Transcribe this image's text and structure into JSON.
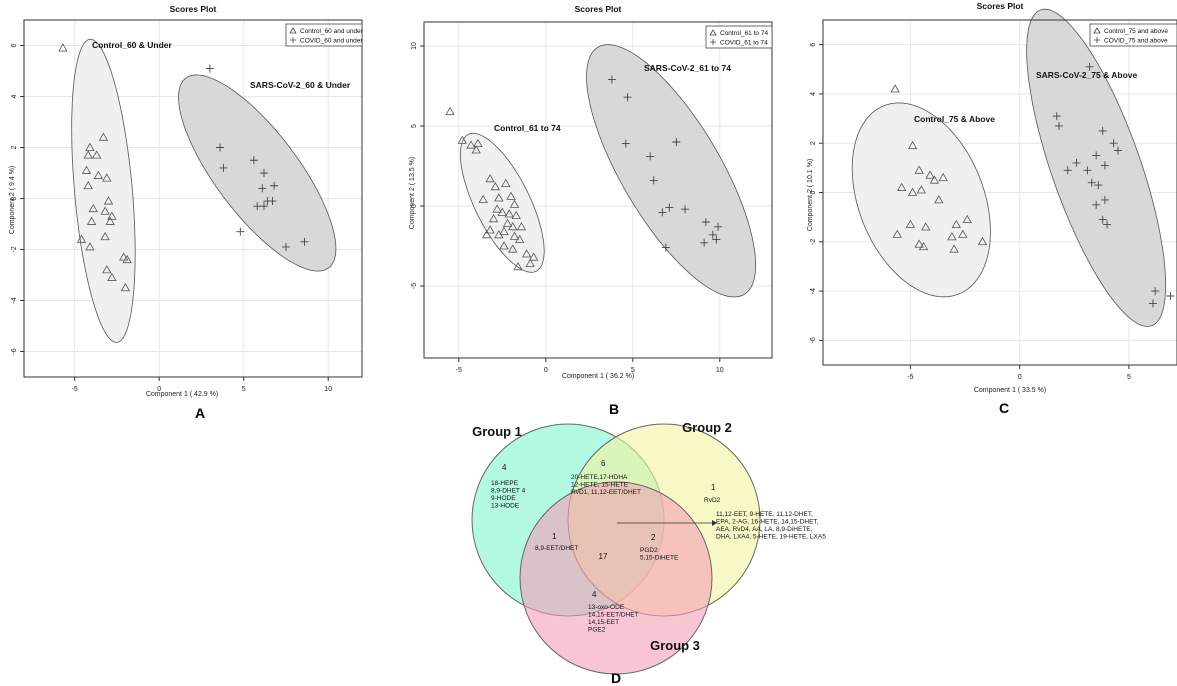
{
  "panel_letters": [
    "A",
    "B",
    "C",
    "D"
  ],
  "chart_data": [
    {
      "type": "scatter",
      "letter": "A",
      "title": "Scores Plot",
      "xlabel": "Component 1 ( 42.9 %)",
      "ylabel": "Component 2 ( 9.4 %)",
      "xlim": [
        -8,
        12
      ],
      "ylim": [
        -7,
        7
      ],
      "xticks": [
        -5,
        0,
        5,
        10
      ],
      "yticks": [
        -6,
        -4,
        -2,
        0,
        2,
        4,
        6
      ],
      "legend": {
        "position": "top-right",
        "entries": [
          "Control_60 and under",
          "COVID_60 and under"
        ]
      },
      "series": [
        {
          "name": "Control_60 and under",
          "marker": "triangle",
          "group_label": "Control_60 & Under",
          "ellipse": {
            "cx": -3.3,
            "cy": 0.3,
            "rx": 6.0,
            "ry": 1.7,
            "angle_deg": -82,
            "fill": "#f0f0f0"
          },
          "points": [
            [
              -5.7,
              5.9
            ],
            [
              -4.2,
              1.7
            ],
            [
              -4.1,
              2.0
            ],
            [
              -3.7,
              1.7
            ],
            [
              -3.3,
              2.4
            ],
            [
              -4.3,
              1.1
            ],
            [
              -3.6,
              0.9
            ],
            [
              -3.1,
              0.8
            ],
            [
              -4.2,
              0.5
            ],
            [
              -3.0,
              -0.1
            ],
            [
              -3.2,
              -0.5
            ],
            [
              -2.8,
              -0.7
            ],
            [
              -2.9,
              -0.9
            ],
            [
              -3.9,
              -0.4
            ],
            [
              -4.0,
              -0.9
            ],
            [
              -3.2,
              -1.5
            ],
            [
              -4.6,
              -1.6
            ],
            [
              -4.1,
              -1.9
            ],
            [
              -3.1,
              -2.8
            ],
            [
              -2.8,
              -3.1
            ],
            [
              -2.1,
              -2.3
            ],
            [
              -1.9,
              -2.4
            ],
            [
              -2.0,
              -3.5
            ]
          ]
        },
        {
          "name": "COVID_60 and under",
          "marker": "plus",
          "group_label": "SARS-CoV-2_60 & Under",
          "ellipse": {
            "cx": 5.8,
            "cy": 1.0,
            "rx": 5.7,
            "ry": 2.0,
            "angle_deg": -38,
            "fill": "#d8d8d8"
          },
          "points": [
            [
              3.0,
              5.1
            ],
            [
              3.6,
              2.0
            ],
            [
              3.8,
              1.2
            ],
            [
              5.6,
              1.5
            ],
            [
              6.2,
              1.0
            ],
            [
              6.8,
              0.5
            ],
            [
              6.1,
              0.4
            ],
            [
              6.4,
              -0.1
            ],
            [
              6.7,
              -0.1
            ],
            [
              6.2,
              -0.3
            ],
            [
              5.8,
              -0.3
            ],
            [
              4.8,
              -1.3
            ],
            [
              7.5,
              -1.9
            ],
            [
              8.6,
              -1.7
            ]
          ]
        }
      ]
    },
    {
      "type": "scatter",
      "letter": "B",
      "title": "Scores Plot",
      "xlabel": "Component 1 ( 36.2 %)",
      "ylabel": "Component 2 ( 13.5 %)",
      "xlim": [
        -7,
        13
      ],
      "ylim": [
        -9.5,
        11.5
      ],
      "xticks": [
        -5,
        0,
        5,
        10
      ],
      "yticks": [
        -5,
        0,
        5,
        10
      ],
      "legend": {
        "position": "top-right",
        "entries": [
          "Control_61 to 74",
          "COVID_61 to 74"
        ]
      },
      "series": [
        {
          "name": "Control_61 to 74",
          "marker": "triangle",
          "group_label": "Control_61 to 74",
          "ellipse": {
            "cx": -2.5,
            "cy": 0.2,
            "rx": 4.7,
            "ry": 1.6,
            "angle_deg": -66,
            "fill": "#f0f0f0"
          },
          "points": [
            [
              -5.5,
              5.9
            ],
            [
              -4.8,
              4.1
            ],
            [
              -4.3,
              3.8
            ],
            [
              -3.9,
              3.9
            ],
            [
              -4.0,
              3.5
            ],
            [
              -3.2,
              1.7
            ],
            [
              -2.9,
              1.2
            ],
            [
              -2.3,
              1.4
            ],
            [
              -3.6,
              0.4
            ],
            [
              -2.7,
              0.5
            ],
            [
              -2.0,
              0.6
            ],
            [
              -1.8,
              0.1
            ],
            [
              -2.8,
              -0.2
            ],
            [
              -2.5,
              -0.4
            ],
            [
              -2.1,
              -0.5
            ],
            [
              -1.7,
              -0.6
            ],
            [
              -3.0,
              -0.8
            ],
            [
              -2.2,
              -1.1
            ],
            [
              -1.9,
              -1.3
            ],
            [
              -1.4,
              -1.3
            ],
            [
              -3.2,
              -1.5
            ],
            [
              -2.7,
              -1.8
            ],
            [
              -2.4,
              -1.6
            ],
            [
              -1.8,
              -1.9
            ],
            [
              -1.5,
              -2.1
            ],
            [
              -3.4,
              -1.8
            ],
            [
              -2.4,
              -2.5
            ],
            [
              -1.9,
              -2.7
            ],
            [
              -1.1,
              -3.0
            ],
            [
              -0.9,
              -3.6
            ],
            [
              -0.7,
              -3.2
            ],
            [
              -1.6,
              -3.8
            ]
          ]
        },
        {
          "name": "COVID_61 to 74",
          "marker": "plus",
          "group_label": "SARS-CoV-2_61 to 74",
          "ellipse": {
            "cx": 7.2,
            "cy": 2.2,
            "rx": 8.8,
            "ry": 2.9,
            "angle_deg": -62,
            "fill": "#d8d8d8"
          },
          "points": [
            [
              3.8,
              7.9
            ],
            [
              4.7,
              6.8
            ],
            [
              4.6,
              3.9
            ],
            [
              6.0,
              3.1
            ],
            [
              7.5,
              4.0
            ],
            [
              6.2,
              1.6
            ],
            [
              6.7,
              -0.4
            ],
            [
              7.1,
              -0.1
            ],
            [
              8.0,
              -0.2
            ],
            [
              6.9,
              -2.6
            ],
            [
              9.2,
              -1.0
            ],
            [
              9.9,
              -1.3
            ],
            [
              9.8,
              -2.1
            ],
            [
              9.1,
              -2.3
            ],
            [
              9.6,
              -1.8
            ]
          ]
        }
      ]
    },
    {
      "type": "scatter",
      "letter": "C",
      "title": "Scores Plot",
      "xlabel": "Component 1 ( 33.5 %)",
      "ylabel": "Component 2 ( 10.1 %)",
      "xlim": [
        -9,
        7.2
      ],
      "ylim": [
        -7,
        7
      ],
      "xticks": [
        -5,
        0,
        5
      ],
      "yticks": [
        -6,
        -4,
        -2,
        0,
        2,
        4,
        6
      ],
      "legend": {
        "position": "top-right",
        "entries": [
          "Control_75 and above",
          "COVID_75 and above"
        ]
      },
      "series": [
        {
          "name": "Control_75 and above",
          "marker": "triangle",
          "group_label": "Control_75 & Above",
          "ellipse": {
            "cx": -4.5,
            "cy": -0.3,
            "rx": 4.2,
            "ry": 2.8,
            "angle_deg": -62,
            "fill": "#f0f0f0"
          },
          "points": [
            [
              -5.7,
              4.2
            ],
            [
              -4.9,
              1.9
            ],
            [
              -4.6,
              0.9
            ],
            [
              -4.1,
              0.7
            ],
            [
              -3.9,
              0.5
            ],
            [
              -3.5,
              0.6
            ],
            [
              -5.4,
              0.2
            ],
            [
              -4.9,
              0.0
            ],
            [
              -4.5,
              0.1
            ],
            [
              -3.7,
              -0.3
            ],
            [
              -5.0,
              -1.3
            ],
            [
              -2.9,
              -1.3
            ],
            [
              -2.4,
              -1.1
            ],
            [
              -5.6,
              -1.7
            ],
            [
              -4.6,
              -2.1
            ],
            [
              -4.4,
              -2.2
            ],
            [
              -3.1,
              -1.8
            ],
            [
              -2.6,
              -1.7
            ],
            [
              -1.7,
              -2.0
            ],
            [
              -3.0,
              -2.3
            ],
            [
              -4.3,
              -1.4
            ]
          ]
        },
        {
          "name": "COVID_75 and above",
          "marker": "plus",
          "group_label": "SARS-CoV-2_75 & Above",
          "ellipse": {
            "cx": 3.5,
            "cy": 1.0,
            "rx": 6.9,
            "ry": 2.0,
            "angle_deg": -68,
            "fill": "#d8d8d8"
          },
          "points": [
            [
              3.2,
              5.1
            ],
            [
              1.7,
              3.1
            ],
            [
              1.8,
              2.7
            ],
            [
              3.8,
              2.5
            ],
            [
              4.3,
              2.0
            ],
            [
              4.5,
              1.7
            ],
            [
              3.5,
              1.5
            ],
            [
              3.9,
              1.1
            ],
            [
              2.6,
              1.2
            ],
            [
              3.1,
              0.9
            ],
            [
              2.2,
              0.9
            ],
            [
              3.3,
              0.4
            ],
            [
              3.6,
              0.3
            ],
            [
              3.9,
              -0.3
            ],
            [
              3.5,
              -0.5
            ],
            [
              3.8,
              -1.1
            ],
            [
              4.0,
              -1.3
            ],
            [
              6.2,
              -4.0
            ],
            [
              6.9,
              -4.2
            ],
            [
              6.1,
              -4.5
            ]
          ]
        }
      ]
    },
    {
      "type": "venn",
      "letter": "D",
      "sets": [
        {
          "name": "Group 1",
          "fill": "#80f4cc"
        },
        {
          "name": "Group 2",
          "fill": "#f4f4a0"
        },
        {
          "name": "Group 3",
          "fill": "#f4a0b4"
        }
      ],
      "regions": [
        {
          "region": "Group 1 only",
          "count": "4",
          "items": [
            "18-HEPE",
            "8,9-DHET 4",
            "9-HODE",
            "13-HODE"
          ]
        },
        {
          "region": "Group 1 & Group 2",
          "count": "6",
          "items": [
            "20-HETE,17-HDHA",
            "12-HETE, 15-HETE",
            "RvD1, 11,12-EET/DHET"
          ]
        },
        {
          "region": "Group 2 only",
          "count": "1",
          "items": [
            "RvD2"
          ]
        },
        {
          "region": "Group 1 & Group 3",
          "count": "1",
          "items": [
            "8,9-EET/DHET"
          ]
        },
        {
          "region": "All groups",
          "count": "17",
          "items": [
            "11,12-EET, 9-HETE, 11,12-DHET,",
            "EPA, 2-AG, 16-HETE, 14,15-DHET,",
            "AEA, RvD4, AA, LA, 8,9-DiHETE,",
            "DHA, LXA4, 5-HETE, 19-HETE, LXA5"
          ]
        },
        {
          "region": "Group 2 & Group 3",
          "count": "2",
          "items": [
            "PGD2",
            "5,15-DiHETE"
          ]
        },
        {
          "region": "Group 3 only",
          "count": "4",
          "items": [
            "13-oxo-ODE",
            "14,15-EET/DHET",
            "14,15-EET",
            "PGE2"
          ]
        }
      ]
    }
  ]
}
